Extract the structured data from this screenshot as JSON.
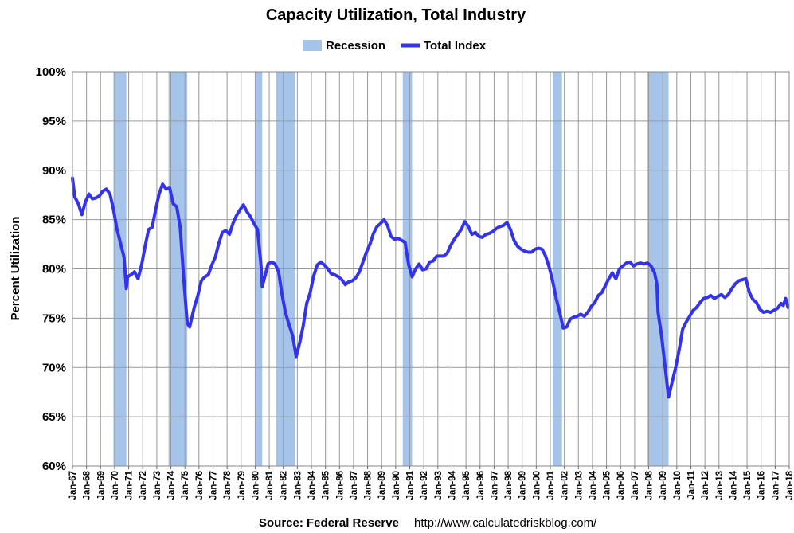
{
  "chart_data": {
    "type": "line",
    "title": "Capacity Utilization, Total Industry",
    "ylabel": "Percent Utilization",
    "xlabel": "",
    "ylim": [
      60,
      100
    ],
    "xlim": [
      "Jan-67",
      "Jan-18"
    ],
    "grid": true,
    "legend_position": "top-center",
    "legend": [
      "Recession",
      "Total Index"
    ],
    "y_ticks": [
      "60%",
      "65%",
      "70%",
      "75%",
      "80%",
      "85%",
      "90%",
      "95%",
      "100%"
    ],
    "x_ticks": [
      "Jan-67",
      "Jan-68",
      "Jan-69",
      "Jan-70",
      "Jan-71",
      "Jan-72",
      "Jan-73",
      "Jan-74",
      "Jan-75",
      "Jan-76",
      "Jan-77",
      "Jan-78",
      "Jan-79",
      "Jan-80",
      "Jan-81",
      "Jan-82",
      "Jan-83",
      "Jan-84",
      "Jan-85",
      "Jan-86",
      "Jan-87",
      "Jan-88",
      "Jan-89",
      "Jan-90",
      "Jan-91",
      "Jan-92",
      "Jan-93",
      "Jan-94",
      "Jan-95",
      "Jan-96",
      "Jan-97",
      "Jan-98",
      "Jan-99",
      "Jan-00",
      "Jan-01",
      "Jan-02",
      "Jan-03",
      "Jan-04",
      "Jan-05",
      "Jan-06",
      "Jan-07",
      "Jan-08",
      "Jan-09",
      "Jan-10",
      "Jan-11",
      "Jan-12",
      "Jan-13",
      "Jan-14",
      "Jan-15",
      "Jan-16",
      "Jan-17",
      "Jan-18"
    ],
    "series": [
      {
        "name": "Total Index",
        "color": "#3333ee",
        "points": [
          [
            "1967-01",
            89.2
          ],
          [
            "1967-03",
            87.3
          ],
          [
            "1967-06",
            86.6
          ],
          [
            "1967-09",
            85.5
          ],
          [
            "1967-12",
            86.8
          ],
          [
            "1968-03",
            87.6
          ],
          [
            "1968-06",
            87.1
          ],
          [
            "1968-09",
            87.2
          ],
          [
            "1968-12",
            87.4
          ],
          [
            "1969-03",
            87.9
          ],
          [
            "1969-06",
            88.1
          ],
          [
            "1969-09",
            87.6
          ],
          [
            "1969-12",
            86.0
          ],
          [
            "1970-03",
            84.0
          ],
          [
            "1970-06",
            82.6
          ],
          [
            "1970-09",
            81.2
          ],
          [
            "1970-11",
            78.0
          ],
          [
            "1970-12",
            79.2
          ],
          [
            "1971-03",
            79.4
          ],
          [
            "1971-06",
            79.7
          ],
          [
            "1971-09",
            79.0
          ],
          [
            "1971-12",
            80.4
          ],
          [
            "1972-03",
            82.3
          ],
          [
            "1972-06",
            84.0
          ],
          [
            "1972-09",
            84.2
          ],
          [
            "1972-12",
            86.0
          ],
          [
            "1973-03",
            87.6
          ],
          [
            "1973-06",
            88.6
          ],
          [
            "1973-09",
            88.1
          ],
          [
            "1973-12",
            88.2
          ],
          [
            "1974-03",
            86.6
          ],
          [
            "1974-06",
            86.3
          ],
          [
            "1974-09",
            84.2
          ],
          [
            "1974-12",
            79.0
          ],
          [
            "1975-03",
            74.5
          ],
          [
            "1975-05",
            74.1
          ],
          [
            "1975-09",
            76.1
          ],
          [
            "1975-12",
            77.3
          ],
          [
            "1976-03",
            78.8
          ],
          [
            "1976-06",
            79.2
          ],
          [
            "1976-09",
            79.4
          ],
          [
            "1976-12",
            80.4
          ],
          [
            "1977-03",
            81.2
          ],
          [
            "1977-06",
            82.6
          ],
          [
            "1977-09",
            83.7
          ],
          [
            "1977-12",
            83.9
          ],
          [
            "1978-03",
            83.5
          ],
          [
            "1978-06",
            84.6
          ],
          [
            "1978-09",
            85.4
          ],
          [
            "1978-12",
            86.0
          ],
          [
            "1979-03",
            86.5
          ],
          [
            "1979-06",
            85.8
          ],
          [
            "1979-09",
            85.3
          ],
          [
            "1979-12",
            84.6
          ],
          [
            "1980-03",
            84.0
          ],
          [
            "1980-06",
            80.3
          ],
          [
            "1980-07",
            78.2
          ],
          [
            "1980-09",
            79.1
          ],
          [
            "1980-12",
            80.5
          ],
          [
            "1981-03",
            80.7
          ],
          [
            "1981-06",
            80.5
          ],
          [
            "1981-09",
            79.7
          ],
          [
            "1981-12",
            77.4
          ],
          [
            "1982-03",
            75.5
          ],
          [
            "1982-06",
            74.3
          ],
          [
            "1982-09",
            73.2
          ],
          [
            "1982-12",
            71.1
          ],
          [
            "1983-03",
            72.5
          ],
          [
            "1983-06",
            74.2
          ],
          [
            "1983-09",
            76.5
          ],
          [
            "1983-12",
            77.6
          ],
          [
            "1984-03",
            79.3
          ],
          [
            "1984-06",
            80.4
          ],
          [
            "1984-09",
            80.7
          ],
          [
            "1984-12",
            80.4
          ],
          [
            "1985-03",
            80.0
          ],
          [
            "1985-06",
            79.5
          ],
          [
            "1985-09",
            79.4
          ],
          [
            "1985-12",
            79.2
          ],
          [
            "1986-03",
            78.9
          ],
          [
            "1986-06",
            78.4
          ],
          [
            "1986-09",
            78.7
          ],
          [
            "1986-12",
            78.8
          ],
          [
            "1987-03",
            79.1
          ],
          [
            "1987-06",
            79.7
          ],
          [
            "1987-09",
            80.7
          ],
          [
            "1987-12",
            81.7
          ],
          [
            "1988-03",
            82.5
          ],
          [
            "1988-06",
            83.6
          ],
          [
            "1988-09",
            84.3
          ],
          [
            "1988-12",
            84.6
          ],
          [
            "1989-03",
            85.0
          ],
          [
            "1989-06",
            84.4
          ],
          [
            "1989-09",
            83.3
          ],
          [
            "1989-12",
            83.0
          ],
          [
            "1990-03",
            83.1
          ],
          [
            "1990-06",
            82.9
          ],
          [
            "1990-09",
            82.7
          ],
          [
            "1990-12",
            80.4
          ],
          [
            "1991-03",
            79.2
          ],
          [
            "1991-06",
            80.0
          ],
          [
            "1991-09",
            80.5
          ],
          [
            "1991-12",
            79.9
          ],
          [
            "1992-03",
            80.0
          ],
          [
            "1992-06",
            80.7
          ],
          [
            "1992-09",
            80.8
          ],
          [
            "1992-12",
            81.3
          ],
          [
            "1993-03",
            81.3
          ],
          [
            "1993-06",
            81.3
          ],
          [
            "1993-09",
            81.6
          ],
          [
            "1993-12",
            82.4
          ],
          [
            "1994-03",
            83.0
          ],
          [
            "1994-06",
            83.5
          ],
          [
            "1994-09",
            84.0
          ],
          [
            "1994-12",
            84.8
          ],
          [
            "1995-03",
            84.3
          ],
          [
            "1995-06",
            83.5
          ],
          [
            "1995-09",
            83.7
          ],
          [
            "1995-12",
            83.3
          ],
          [
            "1996-03",
            83.2
          ],
          [
            "1996-06",
            83.5
          ],
          [
            "1996-09",
            83.6
          ],
          [
            "1996-12",
            83.8
          ],
          [
            "1997-03",
            84.1
          ],
          [
            "1997-06",
            84.3
          ],
          [
            "1997-09",
            84.4
          ],
          [
            "1997-12",
            84.7
          ],
          [
            "1998-03",
            84.0
          ],
          [
            "1998-06",
            82.9
          ],
          [
            "1998-09",
            82.3
          ],
          [
            "1998-12",
            82.0
          ],
          [
            "1999-03",
            81.8
          ],
          [
            "1999-06",
            81.7
          ],
          [
            "1999-09",
            81.7
          ],
          [
            "1999-12",
            82.0
          ],
          [
            "2000-03",
            82.1
          ],
          [
            "2000-06",
            82.0
          ],
          [
            "2000-09",
            81.3
          ],
          [
            "2000-12",
            80.2
          ],
          [
            "2001-03",
            78.8
          ],
          [
            "2001-06",
            77.0
          ],
          [
            "2001-09",
            75.6
          ],
          [
            "2001-12",
            74.0
          ],
          [
            "2002-03",
            74.1
          ],
          [
            "2002-06",
            74.9
          ],
          [
            "2002-09",
            75.1
          ],
          [
            "2002-12",
            75.2
          ],
          [
            "2003-03",
            75.4
          ],
          [
            "2003-06",
            75.2
          ],
          [
            "2003-09",
            75.6
          ],
          [
            "2003-12",
            76.2
          ],
          [
            "2004-03",
            76.6
          ],
          [
            "2004-06",
            77.3
          ],
          [
            "2004-09",
            77.6
          ],
          [
            "2004-12",
            78.3
          ],
          [
            "2005-03",
            79.0
          ],
          [
            "2005-06",
            79.6
          ],
          [
            "2005-09",
            79.0
          ],
          [
            "2005-12",
            80.0
          ],
          [
            "2006-03",
            80.3
          ],
          [
            "2006-06",
            80.6
          ],
          [
            "2006-09",
            80.7
          ],
          [
            "2006-12",
            80.3
          ],
          [
            "2007-03",
            80.5
          ],
          [
            "2007-06",
            80.6
          ],
          [
            "2007-09",
            80.5
          ],
          [
            "2007-12",
            80.6
          ],
          [
            "2008-03",
            80.3
          ],
          [
            "2008-06",
            79.6
          ],
          [
            "2008-08",
            78.5
          ],
          [
            "2008-09",
            75.6
          ],
          [
            "2008-12",
            73.2
          ],
          [
            "2009-03",
            70.1
          ],
          [
            "2009-06",
            67.0
          ],
          [
            "2009-09",
            68.5
          ],
          [
            "2009-12",
            70.0
          ],
          [
            "2010-03",
            71.8
          ],
          [
            "2010-06",
            73.9
          ],
          [
            "2010-09",
            74.6
          ],
          [
            "2010-12",
            75.2
          ],
          [
            "2011-03",
            75.8
          ],
          [
            "2011-06",
            76.1
          ],
          [
            "2011-09",
            76.6
          ],
          [
            "2011-12",
            77.0
          ],
          [
            "2012-03",
            77.1
          ],
          [
            "2012-06",
            77.3
          ],
          [
            "2012-09",
            77.0
          ],
          [
            "2012-12",
            77.2
          ],
          [
            "2013-03",
            77.4
          ],
          [
            "2013-06",
            77.1
          ],
          [
            "2013-09",
            77.4
          ],
          [
            "2013-12",
            78.0
          ],
          [
            "2014-03",
            78.5
          ],
          [
            "2014-06",
            78.8
          ],
          [
            "2014-09",
            78.9
          ],
          [
            "2014-12",
            79.0
          ],
          [
            "2015-03",
            77.6
          ],
          [
            "2015-06",
            76.9
          ],
          [
            "2015-09",
            76.6
          ],
          [
            "2015-12",
            75.9
          ],
          [
            "2016-03",
            75.6
          ],
          [
            "2016-06",
            75.7
          ],
          [
            "2016-09",
            75.6
          ],
          [
            "2016-12",
            75.8
          ],
          [
            "2017-03",
            76.0
          ],
          [
            "2017-06",
            76.5
          ],
          [
            "2017-08",
            76.3
          ],
          [
            "2017-10",
            77.0
          ],
          [
            "2017-12",
            76.1
          ]
        ]
      }
    ],
    "recessions": [
      {
        "start": "1969-12",
        "end": "1970-11",
        "color": "#a6c4ea"
      },
      {
        "start": "1973-11",
        "end": "1975-03",
        "color": "#a6c4ea"
      },
      {
        "start": "1980-01",
        "end": "1980-07",
        "color": "#a6c4ea"
      },
      {
        "start": "1981-07",
        "end": "1982-11",
        "color": "#a6c4ea"
      },
      {
        "start": "1990-07",
        "end": "1991-03",
        "color": "#a6c4ea"
      },
      {
        "start": "2001-03",
        "end": "2001-11",
        "color": "#a6c4ea"
      },
      {
        "start": "2007-12",
        "end": "2009-06",
        "color": "#a6c4ea"
      }
    ]
  },
  "footer": {
    "source": "Source: Federal Reserve",
    "url": "http://www.calculatedriskblog.com/"
  }
}
